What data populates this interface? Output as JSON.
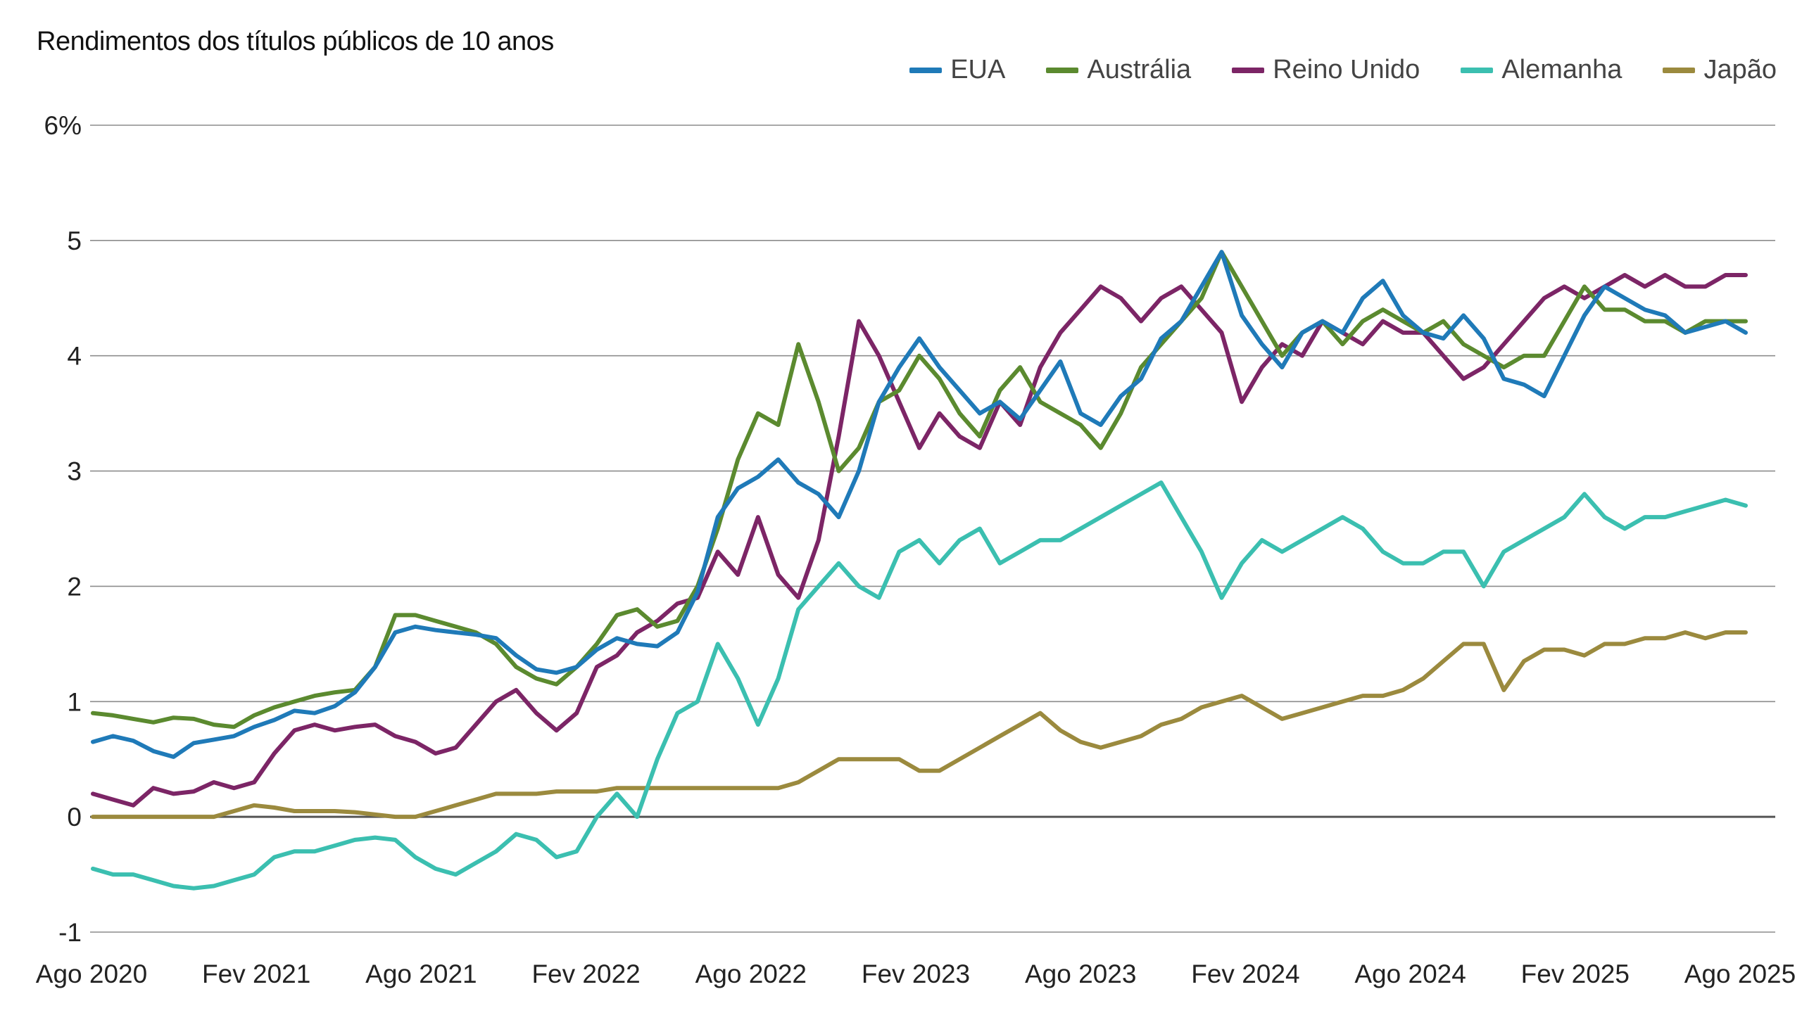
{
  "chart_data": {
    "type": "line",
    "title": "Rendimentos dos títulos públicos de 10 anos",
    "ylim": [
      -1,
      6
    ],
    "yticks": [
      {
        "value": 6,
        "label": "6%"
      },
      {
        "value": 5,
        "label": "5"
      },
      {
        "value": 4,
        "label": "4"
      },
      {
        "value": 3,
        "label": "3"
      },
      {
        "value": 2,
        "label": "2"
      },
      {
        "value": 1,
        "label": "1"
      },
      {
        "value": 0,
        "label": "0"
      },
      {
        "value": -1,
        "label": "-1"
      }
    ],
    "xticks": [
      "Ago 2020",
      "Fev 2021",
      "Ago 2021",
      "Fev 2022",
      "Ago 2022",
      "Fev 2023",
      "Ago 2023",
      "Fev 2024",
      "Ago 2024",
      "Fev 2025",
      "Ago 2025"
    ],
    "grid": true,
    "legend_position": "top-right",
    "series": [
      {
        "name": "EUA",
        "color": "#1f7ab8",
        "values": [
          0.65,
          0.7,
          0.66,
          0.57,
          0.52,
          0.64,
          0.67,
          0.7,
          0.78,
          0.84,
          0.92,
          0.9,
          0.96,
          1.08,
          1.3,
          1.6,
          1.65,
          1.62,
          1.6,
          1.58,
          1.55,
          1.4,
          1.28,
          1.25,
          1.3,
          1.45,
          1.55,
          1.5,
          1.48,
          1.6,
          1.95,
          2.6,
          2.85,
          2.95,
          3.1,
          2.9,
          2.8,
          2.6,
          3.0,
          3.6,
          3.9,
          4.15,
          3.9,
          3.7,
          3.5,
          3.6,
          3.45,
          3.7,
          3.95,
          3.5,
          3.4,
          3.65,
          3.8,
          4.15,
          4.3,
          4.6,
          4.9,
          4.35,
          4.1,
          3.9,
          4.2,
          4.3,
          4.2,
          4.5,
          4.65,
          4.35,
          4.2,
          4.15,
          4.35,
          4.15,
          3.8,
          3.75,
          3.65,
          4.0,
          4.35,
          4.6,
          4.5,
          4.4,
          4.35,
          4.2,
          4.25,
          4.3,
          4.2
        ]
      },
      {
        "name": "Austrália",
        "color": "#5b8a2f",
        "values": [
          0.9,
          0.88,
          0.85,
          0.82,
          0.86,
          0.85,
          0.8,
          0.78,
          0.88,
          0.95,
          1.0,
          1.05,
          1.08,
          1.1,
          1.3,
          1.75,
          1.75,
          1.7,
          1.65,
          1.6,
          1.5,
          1.3,
          1.2,
          1.15,
          1.3,
          1.5,
          1.75,
          1.8,
          1.65,
          1.7,
          2.0,
          2.5,
          3.1,
          3.5,
          3.4,
          4.1,
          3.6,
          3.0,
          3.2,
          3.6,
          3.7,
          4.0,
          3.8,
          3.5,
          3.3,
          3.7,
          3.9,
          3.6,
          3.5,
          3.4,
          3.2,
          3.5,
          3.9,
          4.1,
          4.3,
          4.5,
          4.9,
          4.6,
          4.3,
          4.0,
          4.2,
          4.3,
          4.1,
          4.3,
          4.4,
          4.3,
          4.2,
          4.3,
          4.1,
          4.0,
          3.9,
          4.0,
          4.0,
          4.3,
          4.6,
          4.4,
          4.4,
          4.3,
          4.3,
          4.2,
          4.3,
          4.3,
          4.3
        ]
      },
      {
        "name": "Reino Unido",
        "color": "#7c2566",
        "values": [
          0.2,
          0.15,
          0.1,
          0.25,
          0.2,
          0.22,
          0.3,
          0.25,
          0.3,
          0.55,
          0.75,
          0.8,
          0.75,
          0.78,
          0.8,
          0.7,
          0.65,
          0.55,
          0.6,
          0.8,
          1.0,
          1.1,
          0.9,
          0.75,
          0.9,
          1.3,
          1.4,
          1.6,
          1.7,
          1.85,
          1.9,
          2.3,
          2.1,
          2.6,
          2.1,
          1.9,
          2.4,
          3.3,
          4.3,
          4.0,
          3.6,
          3.2,
          3.5,
          3.3,
          3.2,
          3.6,
          3.4,
          3.9,
          4.2,
          4.4,
          4.6,
          4.5,
          4.3,
          4.5,
          4.6,
          4.4,
          4.2,
          3.6,
          3.9,
          4.1,
          4.0,
          4.3,
          4.2,
          4.1,
          4.3,
          4.2,
          4.2,
          4.0,
          3.8,
          3.9,
          4.1,
          4.3,
          4.5,
          4.6,
          4.5,
          4.6,
          4.7,
          4.6,
          4.7,
          4.6,
          4.6,
          4.7,
          4.7
        ]
      },
      {
        "name": "Alemanha",
        "color": "#3bbfb0",
        "values": [
          -0.45,
          -0.5,
          -0.5,
          -0.55,
          -0.6,
          -0.62,
          -0.6,
          -0.55,
          -0.5,
          -0.35,
          -0.3,
          -0.3,
          -0.25,
          -0.2,
          -0.18,
          -0.2,
          -0.35,
          -0.45,
          -0.5,
          -0.4,
          -0.3,
          -0.15,
          -0.2,
          -0.35,
          -0.3,
          0.0,
          0.2,
          0.0,
          0.5,
          0.9,
          1.0,
          1.5,
          1.2,
          0.8,
          1.2,
          1.8,
          2.0,
          2.2,
          2.0,
          1.9,
          2.3,
          2.4,
          2.2,
          2.4,
          2.5,
          2.2,
          2.3,
          2.4,
          2.4,
          2.5,
          2.6,
          2.7,
          2.8,
          2.9,
          2.6,
          2.3,
          1.9,
          2.2,
          2.4,
          2.3,
          2.4,
          2.5,
          2.6,
          2.5,
          2.3,
          2.2,
          2.2,
          2.3,
          2.3,
          2.0,
          2.3,
          2.4,
          2.5,
          2.6,
          2.8,
          2.6,
          2.5,
          2.6,
          2.6,
          2.65,
          2.7,
          2.75,
          2.7
        ]
      },
      {
        "name": "Japão",
        "color": "#9b8a3e",
        "values": [
          0.0,
          0.0,
          0.0,
          0.0,
          0.0,
          0.0,
          0.0,
          0.05,
          0.1,
          0.08,
          0.05,
          0.05,
          0.05,
          0.04,
          0.02,
          0.0,
          0.0,
          0.05,
          0.1,
          0.15,
          0.2,
          0.2,
          0.2,
          0.22,
          0.22,
          0.22,
          0.25,
          0.25,
          0.25,
          0.25,
          0.25,
          0.25,
          0.25,
          0.25,
          0.25,
          0.3,
          0.4,
          0.5,
          0.5,
          0.5,
          0.5,
          0.4,
          0.4,
          0.5,
          0.6,
          0.7,
          0.8,
          0.9,
          0.75,
          0.65,
          0.6,
          0.65,
          0.7,
          0.8,
          0.85,
          0.95,
          1.0,
          1.05,
          0.95,
          0.85,
          0.9,
          0.95,
          1.0,
          1.05,
          1.05,
          1.1,
          1.2,
          1.35,
          1.5,
          1.5,
          1.1,
          1.35,
          1.45,
          1.45,
          1.4,
          1.5,
          1.5,
          1.55,
          1.55,
          1.6,
          1.55,
          1.6,
          1.6
        ]
      }
    ]
  }
}
